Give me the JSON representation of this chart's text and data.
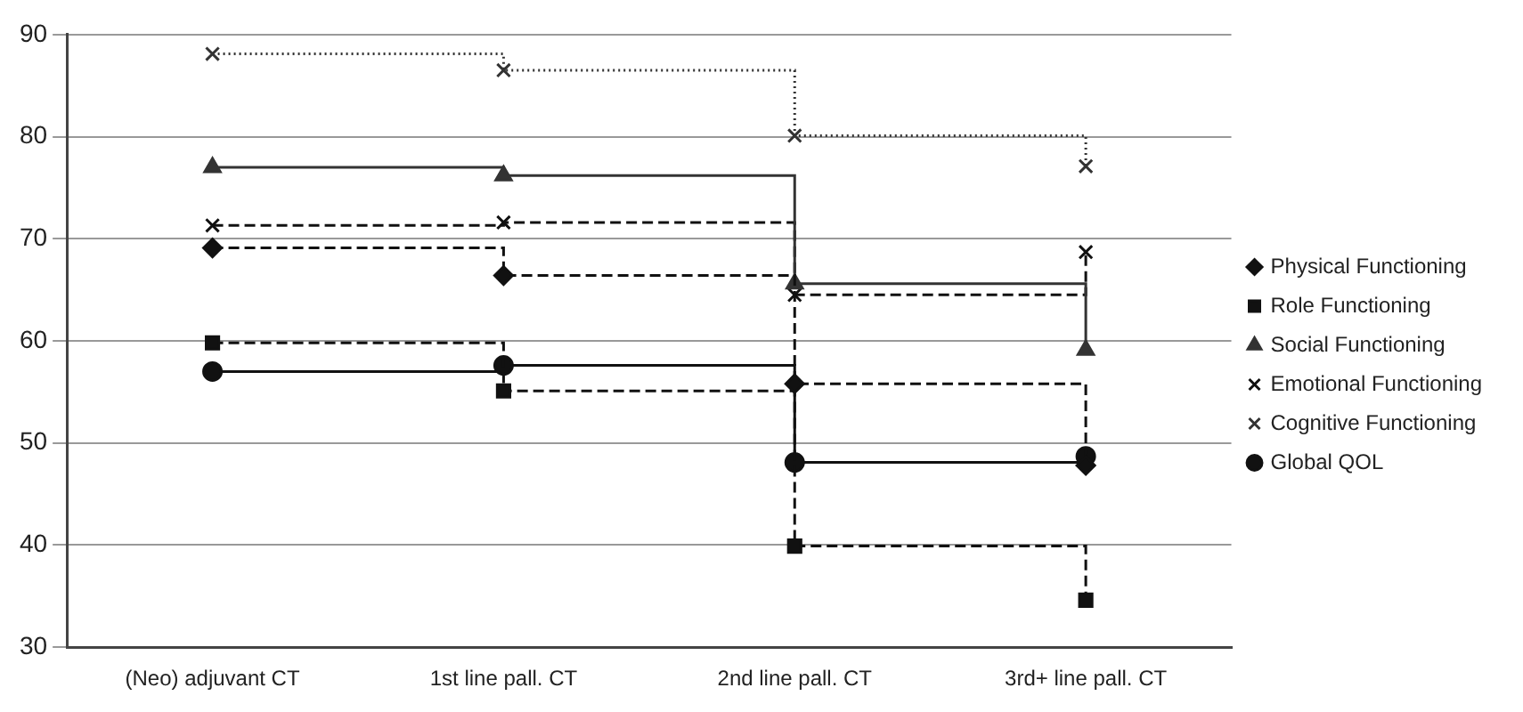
{
  "chart_data": {
    "type": "step",
    "categories": [
      "(Neo) adjuvant CT",
      "1st line pall. CT",
      "2nd line pall. CT",
      "3rd+ line pall. CT"
    ],
    "series": [
      {
        "name": "Physical Functioning",
        "color": "#111111",
        "marker": "diamond",
        "line_style": "dashed",
        "values": [
          69.1,
          66.4,
          55.8,
          47.8
        ]
      },
      {
        "name": "Role Functioning",
        "color": "#111111",
        "marker": "square",
        "line_style": "dashed",
        "values": [
          59.8,
          55.1,
          39.9,
          34.6
        ]
      },
      {
        "name": "Social Functioning",
        "color": "#333333",
        "marker": "triangle",
        "line_style": "solid",
        "values": [
          77.0,
          76.2,
          65.6,
          59.1
        ]
      },
      {
        "name": "Emotional Functioning",
        "color": "#111111",
        "marker": "cross",
        "line_style": "dashed",
        "values": [
          71.3,
          71.6,
          64.5,
          68.7
        ]
      },
      {
        "name": "Cognitive Functioning",
        "color": "#333333",
        "marker": "cross",
        "line_style": "dotted",
        "values": [
          88.1,
          86.5,
          80.1,
          77.1
        ]
      },
      {
        "name": "Global QOL",
        "color": "#111111",
        "marker": "circle",
        "line_style": "solid",
        "values": [
          57.0,
          57.6,
          48.1,
          48.7
        ]
      }
    ],
    "ylim": [
      30,
      90
    ],
    "yticks": [
      30,
      40,
      50,
      60,
      70,
      80,
      90
    ],
    "grid": "y",
    "legend": "right"
  }
}
